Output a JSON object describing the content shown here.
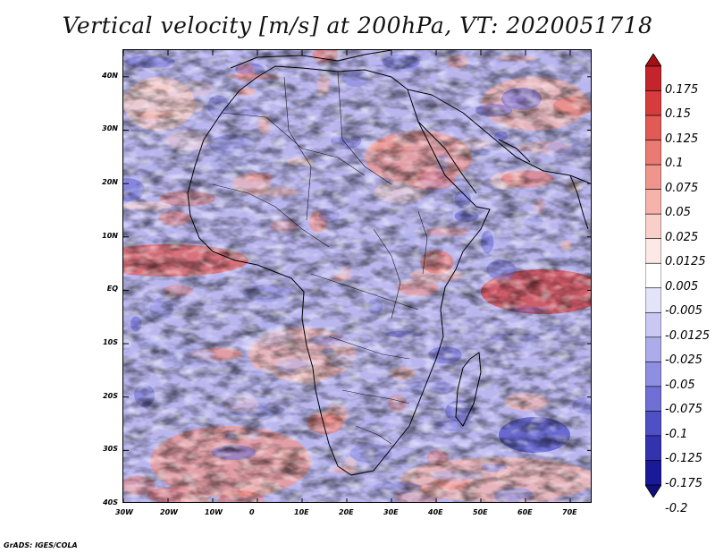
{
  "title": "Vertical velocity [m/s] at 200hPa, VT: 2020051718",
  "credit": "GrADS: IGES/COLA",
  "map": {
    "lon_labels": [
      "30W",
      "20W",
      "10W",
      "0",
      "10E",
      "20E",
      "30E",
      "40E",
      "50E",
      "60E",
      "70E"
    ],
    "lat_labels": [
      "40N",
      "30N",
      "20N",
      "10N",
      "EQ",
      "10S",
      "20S",
      "30S",
      "40S"
    ],
    "lon_range": [
      -30,
      75
    ],
    "lat_range": [
      -40,
      45
    ]
  },
  "colorbar": {
    "labels": [
      "0.175",
      "0.15",
      "0.125",
      "0.1",
      "0.075",
      "0.05",
      "0.025",
      "0.0125",
      "0.005",
      "-0.005",
      "-0.0125",
      "-0.025",
      "-0.05",
      "-0.075",
      "-0.1",
      "-0.125",
      "-0.175",
      "-0.2"
    ],
    "colors": [
      "#a50f15",
      "#c4242b",
      "#d63c3c",
      "#e25a55",
      "#ea7a72",
      "#f0958d",
      "#f5b3ab",
      "#f9cfc9",
      "#fce8e5",
      "#ffffff",
      "#e3e3f9",
      "#c8c8f2",
      "#acacea",
      "#8f8fe2",
      "#6f6fd6",
      "#4f4fc6",
      "#3333b0",
      "#1a1a99",
      "#10107d"
    ]
  }
}
